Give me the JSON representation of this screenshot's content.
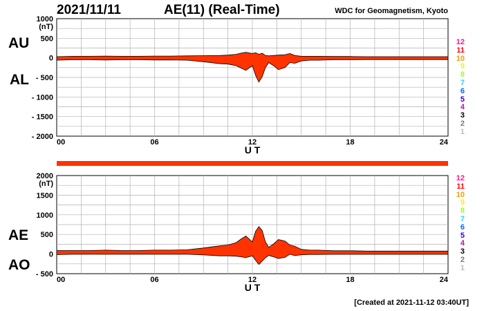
{
  "header": {
    "date": "2021/11/11",
    "title": "AE(11) (Real-Time)",
    "credit": "WDC for Geomagnetism, Kyoto"
  },
  "footer": {
    "created": "[Created at 2021-11-12 03:40UT]"
  },
  "colors": {
    "fill": "#ff3300",
    "bar": "#ff3300",
    "grid": "#b0b0b0"
  },
  "legend": {
    "items": [
      {
        "label": "12",
        "color": "#ff1493"
      },
      {
        "label": "11",
        "color": "#ff0000"
      },
      {
        "label": "10",
        "color": "#ff9900"
      },
      {
        "label": "9",
        "color": "#ffee00"
      },
      {
        "label": "8",
        "color": "#99ff33"
      },
      {
        "label": "7",
        "color": "#33ccff"
      },
      {
        "label": "6",
        "color": "#0066ff"
      },
      {
        "label": "5",
        "color": "#3300cc"
      },
      {
        "label": "4",
        "color": "#cc00cc"
      },
      {
        "label": "3",
        "color": "#000000"
      },
      {
        "label": "2",
        "color": "#777777"
      },
      {
        "label": "1",
        "color": "#bbbbbb"
      }
    ]
  },
  "chart_data": [
    {
      "type": "area",
      "panel": "top",
      "series_labels": [
        "AU",
        "AL"
      ],
      "unit_label": "(nT)",
      "xlabel": "U T",
      "x_ticks": [
        "00",
        "06",
        "12",
        "18",
        "24"
      ],
      "xlim": [
        0,
        24
      ],
      "ylim": [
        -2000,
        1000
      ],
      "y_ticks": [
        1000,
        500,
        0,
        -500,
        -1000,
        -1500,
        -2000
      ],
      "y_tick_labels": [
        "1000",
        "500",
        "0",
        "- 500",
        "- 1000",
        "- 1500",
        "- 2000"
      ],
      "grid": true,
      "series": [
        {
          "name": "AU",
          "x": [
            0,
            1,
            2,
            3,
            4,
            5,
            6,
            7,
            8,
            9,
            10,
            10.5,
            11,
            11.3,
            11.6,
            12,
            12.2,
            12.4,
            12.6,
            12.8,
            13,
            13.3,
            13.6,
            14,
            14.3,
            14.6,
            15,
            15.5,
            16,
            17,
            18,
            19,
            20,
            21,
            22,
            23,
            24
          ],
          "values": [
            30,
            40,
            40,
            45,
            40,
            40,
            45,
            45,
            50,
            55,
            60,
            70,
            90,
            120,
            140,
            110,
            130,
            90,
            120,
            60,
            50,
            60,
            70,
            80,
            110,
            60,
            40,
            40,
            40,
            35,
            35,
            30,
            30,
            30,
            30,
            30,
            30
          ]
        },
        {
          "name": "AL",
          "x": [
            0,
            1,
            2,
            3,
            4,
            5,
            6,
            7,
            8,
            9,
            10,
            10.5,
            11,
            11.3,
            11.6,
            12,
            12.2,
            12.4,
            12.6,
            12.8,
            13,
            13.3,
            13.6,
            14,
            14.3,
            14.6,
            15,
            15.5,
            16,
            17,
            18,
            19,
            20,
            21,
            22,
            23,
            24
          ],
          "values": [
            -60,
            -50,
            -50,
            -55,
            -50,
            -50,
            -55,
            -55,
            -60,
            -100,
            -150,
            -160,
            -200,
            -260,
            -320,
            -200,
            -450,
            -620,
            -480,
            -250,
            -120,
            -200,
            -300,
            -250,
            -120,
            -140,
            -80,
            -60,
            -60,
            -50,
            -50,
            -45,
            -45,
            -45,
            -45,
            -45,
            -45
          ]
        }
      ]
    },
    {
      "type": "area",
      "panel": "bottom",
      "series_labels": [
        "AE",
        "AO"
      ],
      "unit_label": "(nT)",
      "xlabel": "U T",
      "x_ticks": [
        "00",
        "06",
        "12",
        "18",
        "24"
      ],
      "xlim": [
        0,
        24
      ],
      "ylim": [
        -500,
        2000
      ],
      "y_ticks": [
        2000,
        1500,
        1000,
        500,
        0,
        -500
      ],
      "y_tick_labels": [
        "2000",
        "1500",
        "1000",
        "500",
        "0",
        "- 500"
      ],
      "grid": true,
      "series": [
        {
          "name": "AE",
          "x": [
            0,
            1,
            2,
            3,
            4,
            5,
            6,
            7,
            8,
            9,
            10,
            10.5,
            11,
            11.3,
            11.6,
            12,
            12.2,
            12.4,
            12.6,
            12.8,
            13,
            13.3,
            13.6,
            14,
            14.3,
            14.6,
            15,
            15.5,
            16,
            17,
            18,
            19,
            20,
            21,
            22,
            23,
            24
          ],
          "values": [
            90,
            90,
            90,
            100,
            90,
            90,
            100,
            100,
            110,
            155,
            210,
            230,
            290,
            380,
            460,
            310,
            580,
            700,
            600,
            310,
            170,
            260,
            370,
            330,
            230,
            200,
            120,
            100,
            100,
            85,
            85,
            75,
            75,
            75,
            75,
            75,
            75
          ]
        },
        {
          "name": "AO",
          "x": [
            0,
            1,
            2,
            3,
            4,
            5,
            6,
            7,
            8,
            9,
            10,
            10.5,
            11,
            11.3,
            11.6,
            12,
            12.2,
            12.4,
            12.6,
            12.8,
            13,
            13.3,
            13.6,
            14,
            14.3,
            14.6,
            15,
            15.5,
            16,
            17,
            18,
            19,
            20,
            21,
            22,
            23,
            24
          ],
          "values": [
            -15,
            -5,
            -5,
            -5,
            -5,
            -5,
            -5,
            -5,
            -5,
            -22,
            -45,
            -45,
            -55,
            -70,
            -90,
            -45,
            -160,
            -265,
            -180,
            -95,
            -35,
            -70,
            -115,
            -85,
            -5,
            -40,
            -20,
            -10,
            -10,
            -7,
            -7,
            -7,
            -7,
            -7,
            -7,
            -7,
            -7
          ]
        }
      ]
    }
  ]
}
